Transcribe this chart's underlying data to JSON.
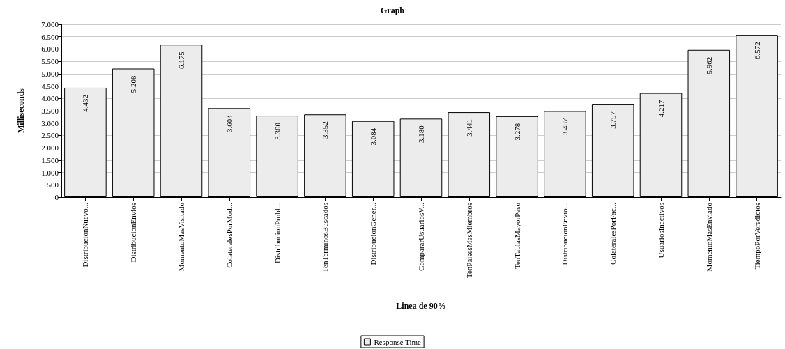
{
  "chart_data": {
    "type": "bar",
    "title": "Graph",
    "xlabel": "Linea de 90%",
    "ylabel": "Milliseconds",
    "categories": [
      "DistribucionNuevo...",
      "DistribucionEnvios",
      "MomentoMasVisitado",
      "ColateralesPorMod...",
      "DistribucionProbl...",
      "TenTerminosBuscados",
      "DistribucionGener...",
      "CompararUsuariosV...",
      "TenPaisesMasMiembros",
      "TenTablasMayorPeso",
      "DistribucionEnvio...",
      "ColateralesPorFac...",
      "UsuariosInactivos",
      "MomentoMasEnviado",
      "TiempoPorVeredictos"
    ],
    "series": [
      {
        "name": "Response Time",
        "color": "#ececec",
        "values": [
          4432,
          5208,
          6175,
          3604,
          3300,
          3352,
          3084,
          3180,
          3441,
          3278,
          3487,
          3757,
          4217,
          5962,
          6572
        ],
        "value_labels": [
          "4.432",
          "5.208",
          "6.175",
          "3.604",
          "3.300",
          "3.352",
          "3.084",
          "3.180",
          "3.441",
          "3.278",
          "3.487",
          "3.757",
          "4.217",
          "5.962",
          "6.572"
        ]
      }
    ],
    "ylim": [
      0,
      7000
    ],
    "yticks": [
      0,
      500,
      {
        "value": 1000,
        "label": "1.000"
      },
      {
        "value": 1500,
        "label": "1.500"
      },
      {
        "value": 2000,
        "label": "2.000"
      },
      {
        "value": 2500,
        "label": "2.500"
      },
      {
        "value": 3000,
        "label": "3.000"
      },
      {
        "value": 3500,
        "label": "3.500"
      },
      {
        "value": 4000,
        "label": "4.000"
      },
      {
        "value": 4500,
        "label": "4.500"
      },
      {
        "value": 5000,
        "label": "5.000"
      },
      {
        "value": 5500,
        "label": "5.500"
      },
      {
        "value": 6000,
        "label": "6.000"
      },
      {
        "value": 6500,
        "label": "6.500"
      },
      {
        "value": 7000,
        "label": "7.000"
      }
    ],
    "grid": "y",
    "legend": "bottom"
  }
}
